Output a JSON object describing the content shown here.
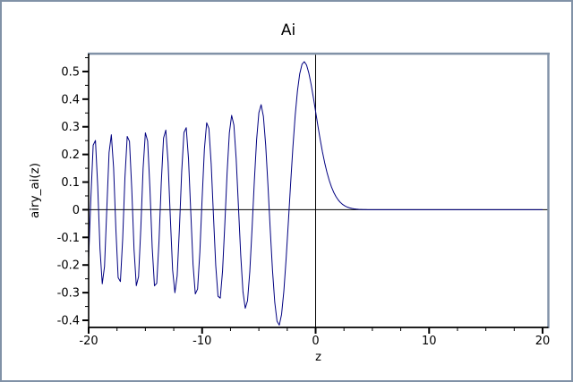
{
  "window": {
    "background": "#ffffff",
    "border_color": "#8192a7"
  },
  "chart_data": {
    "type": "line",
    "title": "Ai",
    "xlabel": "z",
    "ylabel": "airy_ai(z)",
    "grid": false,
    "origin_axes": true,
    "axis_color": "#000000",
    "frame_color": "#8192a7",
    "series": [
      {
        "name": "airy_ai",
        "function": "airy_ai",
        "x_start": -20,
        "x_end": 20,
        "x_step": 0.2,
        "color": "#000080"
      }
    ],
    "xlim": [
      -20,
      20.51
    ],
    "ylim": [
      -0.4258,
      0.5645
    ],
    "x_major_ticks": [
      -20,
      -10,
      0,
      10,
      20
    ],
    "x_major_labels": [
      "-20",
      "-10",
      "0",
      "10",
      "20"
    ],
    "x_minor_step": 2.5,
    "y_major_ticks": [
      0.5,
      0.4,
      0.3,
      0.2,
      0.1,
      0,
      -0.1,
      -0.2,
      -0.3,
      -0.4
    ],
    "y_major_labels": [
      "0.5",
      "0.4",
      "0.3",
      "0.2",
      "0.1",
      "0",
      "-0.1",
      "-0.2",
      "-0.3",
      "-0.4"
    ],
    "y_minor_step": 0.05,
    "key_points": [
      {
        "z": -1.019,
        "value": 0.536,
        "note": "global maximum"
      },
      {
        "z": 0,
        "value": 0.355,
        "note": "Ai(0) at origin line"
      },
      {
        "z": -3.248,
        "value": -0.412,
        "note": "deepest minimum"
      },
      {
        "z": -4.82,
        "value": 0.377,
        "note": "second peak"
      },
      {
        "z": -19.48,
        "value": 0.245,
        "note": "leftmost sampled peak"
      },
      {
        "z": 4,
        "value": 0.0,
        "note": "curve flat at zero for z > 4"
      },
      {
        "z": 20,
        "value": 0.0,
        "note": "right end, zero"
      }
    ]
  }
}
